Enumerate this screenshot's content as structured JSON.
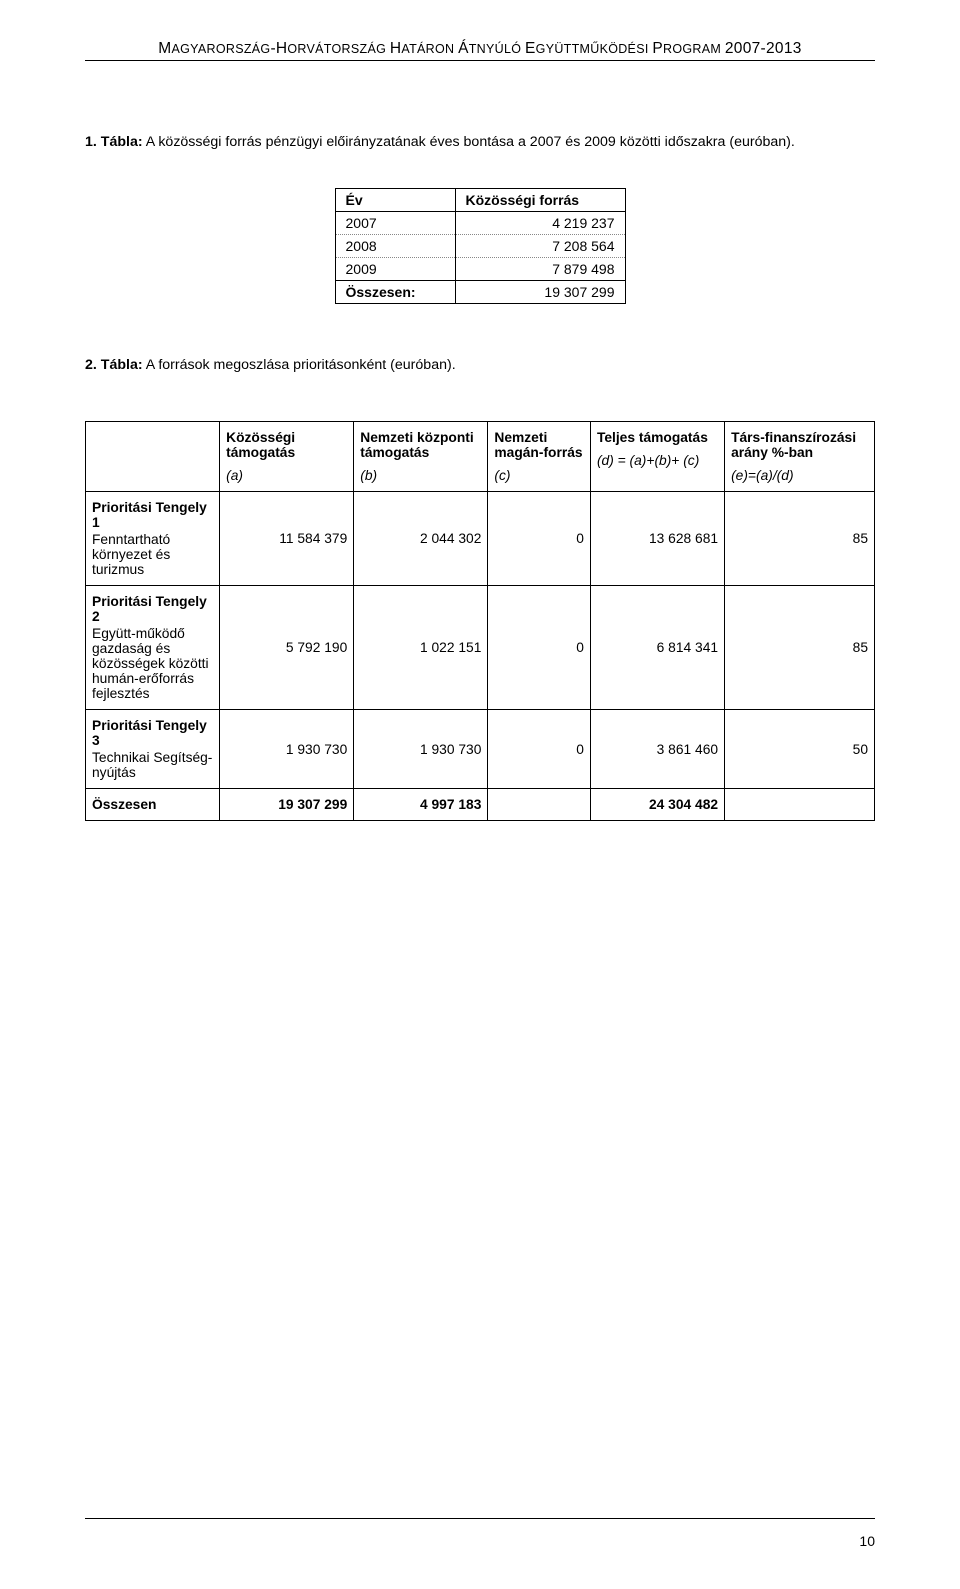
{
  "header": {
    "segments": [
      {
        "text": "M",
        "cls": "header-large"
      },
      {
        "text": "AGYARORSZÁG",
        "cls": "header-small"
      },
      {
        "text": "-H",
        "cls": "header-large"
      },
      {
        "text": "ORVÁTORSZÁG ",
        "cls": "header-small"
      },
      {
        "text": "H",
        "cls": "header-large"
      },
      {
        "text": "ATÁRON ",
        "cls": "header-small"
      },
      {
        "text": "Á",
        "cls": "header-large"
      },
      {
        "text": "TNYÚLÓ ",
        "cls": "header-small"
      },
      {
        "text": "E",
        "cls": "header-large"
      },
      {
        "text": "GYÜTTMŰKÖDÉSI ",
        "cls": "header-small"
      },
      {
        "text": "P",
        "cls": "header-large"
      },
      {
        "text": "ROGRAM ",
        "cls": "header-small"
      },
      {
        "text": "2007-2013",
        "cls": "header-large"
      }
    ]
  },
  "caption1": {
    "lead": "1. Tábla:",
    "rest": " A közösségi forrás pénzügyi előirányzatának éves bontása a 2007 és 2009 közötti időszakra (euróban)."
  },
  "table1": {
    "headers": [
      "Év",
      "Közösségi forrás"
    ],
    "rows": [
      {
        "year": "2007",
        "val": "4 219 237"
      },
      {
        "year": "2008",
        "val": "7 208 564"
      },
      {
        "year": "2009",
        "val": "7 879 498"
      }
    ],
    "total": {
      "label": "Összesen:",
      "val": "19 307 299"
    }
  },
  "caption2": {
    "lead": "2. Tábla:",
    "rest": " A források megoszlása prioritásonként (euróban)."
  },
  "table2": {
    "colheaders": [
      {
        "title": "",
        "sub": ""
      },
      {
        "title": "Közösségi támogatás",
        "sub": "(a)"
      },
      {
        "title": "Nemzeti központi támogatás",
        "sub": "(b)"
      },
      {
        "title": "Nemzeti magán-forrás",
        "sub": "(c)"
      },
      {
        "title": "Teljes támogatás",
        "sub": "(d) = (a)+(b)+ (c)"
      },
      {
        "title": "Társ-finanszírozási arány %-ban",
        "sub": "(e)=(a)/(d)"
      }
    ],
    "groups": [
      {
        "axis": "Prioritási Tengely 1",
        "sub": "Fenntartható környezet és turizmus",
        "vals": [
          "11 584 379",
          "2 044 302",
          "0",
          "13 628 681",
          "85"
        ]
      },
      {
        "axis": "Prioritási Tengely 2",
        "sub": "Együtt-működő gazdaság és közösségek közötti humán-erőforrás fejlesztés",
        "vals": [
          "5 792 190",
          "1 022 151",
          "0",
          "6 814 341",
          "85"
        ]
      },
      {
        "axis": "Prioritási Tengely 3",
        "sub": "Technikai Segítség-nyújtás",
        "vals": [
          "1 930 730",
          "1 930 730",
          "0",
          "3 861 460",
          "50"
        ]
      }
    ],
    "total": {
      "label": "Összesen",
      "vals": [
        "19 307 299",
        "4 997 183",
        "",
        "24 304 482",
        ""
      ]
    }
  },
  "page_number": "10"
}
